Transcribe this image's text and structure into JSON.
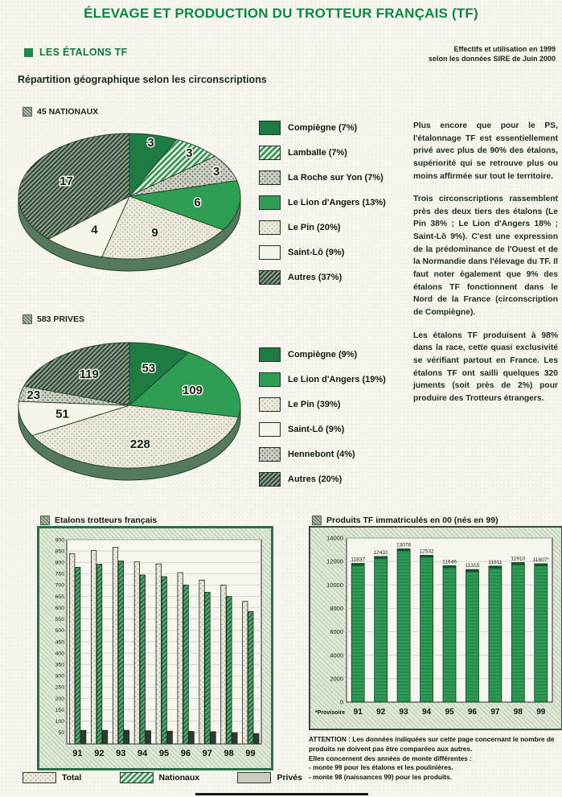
{
  "page": {
    "title": "ÉLEVAGE ET PRODUCTION DU TROTTEUR FRANÇAIS (TF)",
    "section_title": "LES ÉTALONS TF",
    "subtitle": "Répartition géographique selon les circonscriptions",
    "source_note": [
      "Effectifs et utilisation en 1999",
      "selon les données SIRE de Juin 2000"
    ]
  },
  "colors": {
    "title_green": "#0a8a3f",
    "accent_green": "#1d8a46",
    "dark_green": "#1e7c42",
    "bright_green": "#2f9e55"
  },
  "text_column": {
    "paragraphs": [
      "Plus encore que pour le PS, l'étalonnage TF est essentiellement privé avec plus de 90% des étalons, supériorité qui se retrouve plus ou moins affirmée sur tout le territoire.",
      "Trois circonscriptions rassemblent près des deux tiers des étalons (Le Pin 38% ; Le Lion d'Angers 18% ; Saint-Lô 9%). C'est une expression de la prédominance de l'Ouest et de la Normandie dans l'élevage du TF. Il faut noter également que 9% des étalons TF fonctionnent dans le Nord de la France (circonscription de Compiègne).",
      "Les étalons TF produisent à 98% dans la race, cette quasi exclusivité se vérifiant partout en France. Les étalons TF ont sailli quelques 320 juments (soit près de 2%) pour produire des Trotteurs étrangers."
    ]
  },
  "chart_data": [
    {
      "type": "pie",
      "title": "45 NATIONAUX",
      "total": 45,
      "slices": [
        {
          "label": "Compiègne",
          "pct": 7,
          "value": 3,
          "fill": "#1e7c42"
        },
        {
          "label": "Lamballe",
          "pct": 7,
          "value": 3,
          "fill": "p-hatch-green"
        },
        {
          "label": "La Roche sur Yon",
          "pct": 7,
          "value": 3,
          "fill": "p-dot-gray"
        },
        {
          "label": "Le Lion d'Angers",
          "pct": 13,
          "value": 6,
          "fill": "#2f9e55"
        },
        {
          "label": "Le Pin",
          "pct": 20,
          "value": 9,
          "fill": "p-dot-light"
        },
        {
          "label": "Saint-Lô",
          "pct": 9,
          "value": 4,
          "fill": "#f6f5ea"
        },
        {
          "label": "Autres",
          "pct": 37,
          "value": 17,
          "fill": "p-hatch-dark"
        }
      ]
    },
    {
      "type": "pie",
      "title": "583 PRIVES",
      "total": 583,
      "slices": [
        {
          "label": "Compiègne",
          "pct": 9,
          "value": 53,
          "fill": "#1e7c42"
        },
        {
          "label": "Le Lion d'Angers",
          "pct": 19,
          "value": 109,
          "fill": "#2f9e55"
        },
        {
          "label": "Le Pin",
          "pct": 39,
          "value": 228,
          "fill": "p-dot-light"
        },
        {
          "label": "Saint-Lô",
          "pct": 9,
          "value": 51,
          "fill": "#f6f5ea"
        },
        {
          "label": "Hennebont",
          "pct": 4,
          "value": 23,
          "fill": "p-dot-gray"
        },
        {
          "label": "Autres",
          "pct": 20,
          "value": 119,
          "fill": "p-hatch-dark"
        }
      ]
    },
    {
      "type": "bar",
      "title": "Etalons trotteurs français",
      "categories": [
        "91",
        "92",
        "93",
        "94",
        "95",
        "96",
        "97",
        "98",
        "99"
      ],
      "series": [
        {
          "name": "Total",
          "fill": "p-dot-light",
          "values": [
            838,
            852,
            866,
            802,
            793,
            755,
            722,
            700,
            628
          ]
        },
        {
          "name": "Privés",
          "fill": "p-bar-green",
          "values": [
            778,
            792,
            806,
            744,
            737,
            700,
            668,
            650,
            583
          ]
        },
        {
          "name": "Nationaux",
          "fill": "#2c3a31",
          "values": [
            60,
            60,
            60,
            58,
            56,
            55,
            54,
            50,
            45
          ]
        }
      ],
      "ylim": [
        0,
        900
      ],
      "ystep": 50,
      "legend_position": "bottom"
    },
    {
      "type": "bar",
      "title": "Produits TF immatriculés en 00 (nés en 99)",
      "categories": [
        "91",
        "92",
        "93",
        "94",
        "95",
        "96",
        "97",
        "98",
        "99"
      ],
      "values": [
        11837,
        12431,
        13076,
        12532,
        11646,
        11315,
        11611,
        11910,
        11807
      ],
      "bar_labels": [
        "11837",
        "12431",
        "13076",
        "12532",
        "11646",
        "11315",
        "11611",
        "11910",
        "11807*"
      ],
      "ylim": [
        0,
        14000
      ],
      "ystep": 2000,
      "footnote": "*Provisoire",
      "bar_fill": "p-bar-green2"
    }
  ],
  "attention": {
    "heading": "ATTENTION :",
    "lines": [
      "Les données indiquées sur cette page concernant le nombre de produits ne doivent pas être comparées aux autres.",
      "Elles concernent des années de monte différentes :",
      "- monte 99 pour les étalons et les poulinières.",
      "- monte 98 (naissances 99) pour les produits."
    ]
  },
  "bottom_legend": [
    {
      "label": "Total",
      "fill": "p-dot-light"
    },
    {
      "label": "Nationaux",
      "fill": "p-hatch-green"
    },
    {
      "label": "Privés",
      "fill": "#c9cdc0"
    }
  ]
}
